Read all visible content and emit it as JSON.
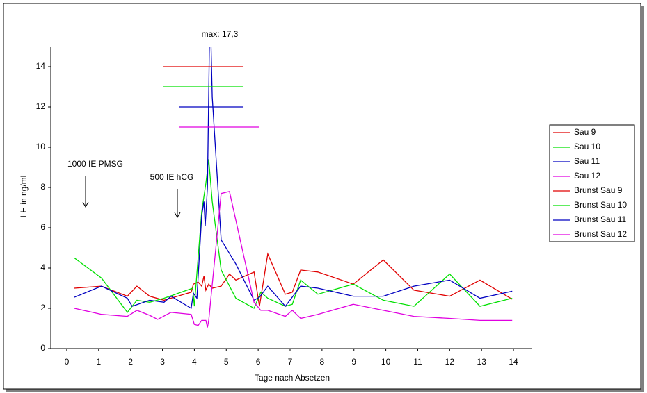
{
  "chart_data": {
    "type": "line",
    "y_label": "LH in ng/ml",
    "x_label": "Tage nach Absetzen",
    "annotations": [
      "max: 17,3",
      "1000 IE PMSG",
      "500 IE hCG"
    ],
    "xlim": [
      -0.5,
      14.5
    ],
    "ylim": [
      0,
      15
    ],
    "xticks": [
      0,
      1,
      2,
      3,
      4,
      5,
      6,
      7,
      8,
      9,
      10,
      11,
      12,
      13,
      14
    ],
    "yticks": [
      0,
      2,
      4,
      6,
      8,
      10,
      12,
      14
    ],
    "series": [
      {
        "name": "Sau 9",
        "color": "#e00000",
        "x": [
          0.24,
          1.09,
          1.9,
          2.2,
          2.6,
          3.05,
          3.9,
          3.97,
          4.12,
          4.23,
          4.3,
          4.36,
          4.45,
          4.56,
          4.84,
          5.1,
          5.3,
          5.87,
          6.04,
          6.3,
          6.85,
          7.07,
          7.33,
          7.87,
          8.98,
          9.92,
          10.88,
          12.0,
          12.95,
          13.96
        ],
        "values": [
          3.0,
          3.1,
          2.6,
          3.1,
          2.6,
          2.4,
          2.8,
          3.2,
          3.3,
          3.1,
          3.6,
          2.9,
          3.2,
          3.0,
          3.1,
          3.7,
          3.4,
          3.8,
          2.1,
          4.7,
          2.7,
          2.8,
          3.9,
          3.8,
          3.2,
          4.4,
          2.9,
          2.6,
          3.4,
          2.45
        ]
      },
      {
        "name": "Sau 10",
        "color": "#00e000",
        "x": [
          0.24,
          1.09,
          1.9,
          2.2,
          2.6,
          3.05,
          3.95,
          4.0,
          4.23,
          4.36,
          4.45,
          4.56,
          4.84,
          5.3,
          5.87,
          6.08,
          6.3,
          6.85,
          7.07,
          7.33,
          7.87,
          8.98,
          9.92,
          10.88,
          12.0,
          12.95,
          13.96
        ],
        "values": [
          4.5,
          3.5,
          1.8,
          2.4,
          2.3,
          2.5,
          3.0,
          2.1,
          6.8,
          8.2,
          9.4,
          7.3,
          3.9,
          2.5,
          2.0,
          2.8,
          2.5,
          2.1,
          2.2,
          3.4,
          2.7,
          3.2,
          2.4,
          2.1,
          3.7,
          2.1,
          2.5
        ]
      },
      {
        "name": "Sau 11",
        "color": "#0000c0",
        "x": [
          0.24,
          1.09,
          1.9,
          2.05,
          2.6,
          3.05,
          3.27,
          3.9,
          3.97,
          4.08,
          4.23,
          4.3,
          4.34,
          4.41,
          4.49,
          4.56,
          4.84,
          5.3,
          5.87,
          6.04,
          6.3,
          6.85,
          7.33,
          7.87,
          8.98,
          9.92,
          10.88,
          12.0,
          12.95,
          13.96
        ],
        "values": [
          2.55,
          3.1,
          2.5,
          2.1,
          2.4,
          2.3,
          2.6,
          2.0,
          2.75,
          2.5,
          6.6,
          7.3,
          6.1,
          8.0,
          17.3,
          12.5,
          5.4,
          4.2,
          2.4,
          2.55,
          3.1,
          2.1,
          3.1,
          3.0,
          2.6,
          2.6,
          3.1,
          3.4,
          2.5,
          2.85
        ]
      },
      {
        "name": "Sau 12",
        "color": "#e000e0",
        "x": [
          0.24,
          1.09,
          1.9,
          2.2,
          2.6,
          2.85,
          3.27,
          3.9,
          4.0,
          4.12,
          4.23,
          4.36,
          4.41,
          4.45,
          4.84,
          5.1,
          5.87,
          6.08,
          6.3,
          6.85,
          7.07,
          7.33,
          7.87,
          8.98,
          9.92,
          10.88,
          12.0,
          12.95,
          13.96
        ],
        "values": [
          2.0,
          1.7,
          1.6,
          1.9,
          1.65,
          1.45,
          1.8,
          1.7,
          1.2,
          1.15,
          1.4,
          1.4,
          1.05,
          1.4,
          7.7,
          7.8,
          2.3,
          1.9,
          1.9,
          1.6,
          1.9,
          1.5,
          1.7,
          2.2,
          1.9,
          1.6,
          1.5,
          1.4,
          1.4
        ]
      },
      {
        "name": "Brunst Sau 9",
        "color": "#e00000",
        "x": [
          3.03,
          5.54
        ],
        "values": [
          14,
          14
        ]
      },
      {
        "name": "Brunst Sau 10",
        "color": "#00e000",
        "x": [
          3.03,
          5.54
        ],
        "values": [
          13,
          13
        ]
      },
      {
        "name": "Brunst Sau 11",
        "color": "#0000c0",
        "x": [
          3.53,
          5.54
        ],
        "values": [
          12,
          12
        ]
      },
      {
        "name": "Brunst Sau 12",
        "color": "#e000e0",
        "x": [
          3.53,
          6.04
        ],
        "values": [
          11,
          11
        ]
      }
    ]
  }
}
